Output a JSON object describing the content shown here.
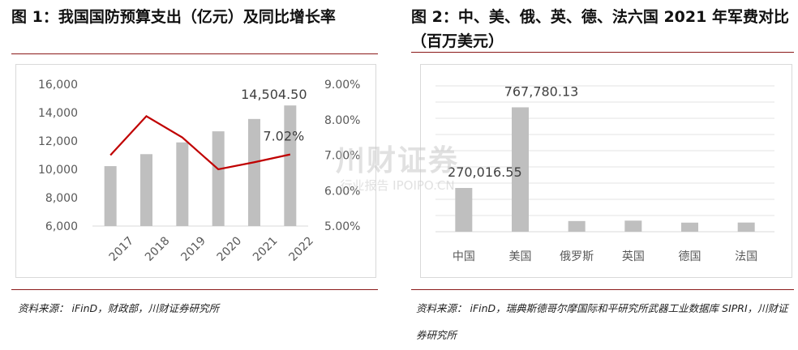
{
  "figure1": {
    "title": "图 1：我国国防预算支出（亿元）及同比增长率",
    "source": "资料来源： iFinD，财政部，川财证券研究所"
  },
  "figure2": {
    "title": "图 2：中、美、俄、英、德、法六国 2021 年军费对比（百万美元）",
    "source": "资料来源： iFinD，瑞典斯德哥尔摩国际和平研究所武器工业数据库 SIPRI，川财证券研究所"
  },
  "watermark": {
    "main": "川财证券",
    "sub": "行业报告 IPOIPO.CN"
  },
  "chart_data": [
    {
      "type": "bar",
      "categories": [
        "2017",
        "2018",
        "2019",
        "2020",
        "2021",
        "2022"
      ],
      "series": [
        {
          "type": "bar",
          "values": [
            10226,
            11070,
            11899,
            12680,
            13553,
            14504.5
          ],
          "color": "#bfbfbf"
        },
        {
          "type": "line",
          "axis": "right",
          "values": [
            7.0,
            8.1,
            7.5,
            6.6,
            6.8,
            7.02
          ],
          "color": "#c00000"
        }
      ],
      "ylim": [
        6000,
        16000
      ],
      "yticks": [
        "6,000",
        "8,000",
        "10,000",
        "12,000",
        "14,000",
        "16,000"
      ],
      "y2lim": [
        5.0,
        9.0
      ],
      "y2ticks": [
        "5.00%",
        "6.00%",
        "7.00%",
        "8.00%",
        "9.00%"
      ],
      "data_labels": [
        {
          "text": "14,504.50",
          "category": "2022",
          "series": 0
        },
        {
          "text": "7.02%",
          "category": "2022",
          "series": 1
        }
      ],
      "grid": false
    },
    {
      "type": "bar",
      "categories": [
        "中国",
        "美国",
        "俄罗斯",
        "英国",
        "德国",
        "法国"
      ],
      "values": [
        270016.55,
        767780.13,
        65908,
        68367,
        56016,
        56647
      ],
      "color": "#bfbfbf",
      "ylim": [
        0,
        900000
      ],
      "grid": true,
      "data_labels": [
        {
          "text": "270,016.55",
          "category": "中国"
        },
        {
          "text": "767,780.13",
          "category": "美国"
        }
      ]
    }
  ]
}
